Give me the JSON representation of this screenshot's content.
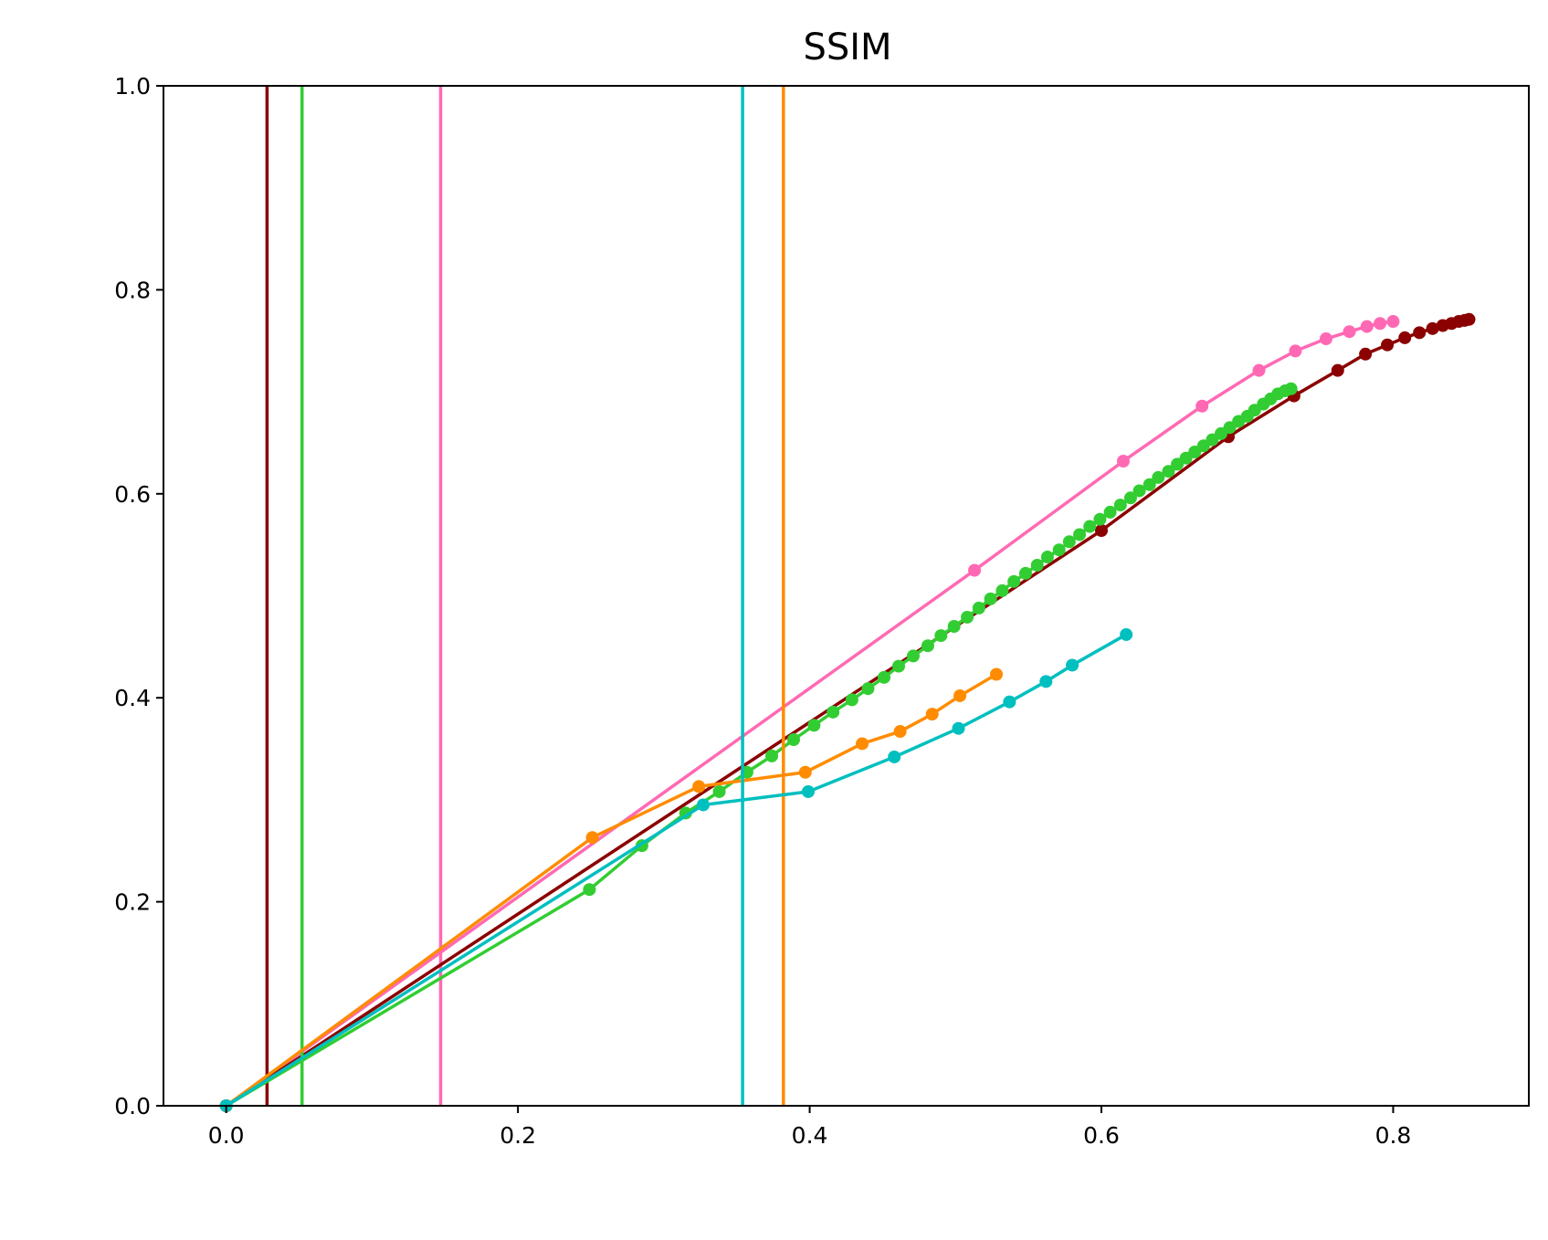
{
  "chart_data": {
    "type": "line",
    "title": "SSIM",
    "xlabel": "",
    "ylabel": "",
    "xlim": [
      -0.043,
      0.893
    ],
    "ylim": [
      0.0,
      1.0
    ],
    "xticks": [
      0.0,
      0.2,
      0.4,
      0.6,
      0.8
    ],
    "xtick_labels": [
      "0.0",
      "0.2",
      "0.4",
      "0.6",
      "0.8"
    ],
    "yticks": [
      0.0,
      0.2,
      0.4,
      0.6,
      0.8,
      1.0
    ],
    "ytick_labels": [
      "0.0",
      "0.2",
      "0.4",
      "0.6",
      "0.8",
      "1.0"
    ],
    "grid": false,
    "series": [
      {
        "color": "#ff69b4",
        "vline": 0.147,
        "points": [
          [
            0.0,
            0.0
          ],
          [
            0.513,
            0.525
          ],
          [
            0.615,
            0.632
          ],
          [
            0.669,
            0.686
          ],
          [
            0.708,
            0.721
          ],
          [
            0.733,
            0.74
          ],
          [
            0.754,
            0.752
          ],
          [
            0.77,
            0.759
          ],
          [
            0.782,
            0.764
          ],
          [
            0.791,
            0.767
          ],
          [
            0.8,
            0.769
          ]
        ]
      },
      {
        "color": "#8b0000",
        "vline": 0.028,
        "points": [
          [
            0.0,
            0.0
          ],
          [
            0.6,
            0.564
          ],
          [
            0.687,
            0.656
          ],
          [
            0.732,
            0.696
          ],
          [
            0.762,
            0.721
          ],
          [
            0.781,
            0.737
          ],
          [
            0.796,
            0.746
          ],
          [
            0.808,
            0.753
          ],
          [
            0.818,
            0.758
          ],
          [
            0.827,
            0.762
          ],
          [
            0.834,
            0.765
          ],
          [
            0.84,
            0.767
          ],
          [
            0.845,
            0.769
          ],
          [
            0.849,
            0.77
          ],
          [
            0.852,
            0.771
          ]
        ]
      },
      {
        "color": "#32cd32",
        "vline": 0.052,
        "points": [
          [
            0.0,
            0.0
          ],
          [
            0.249,
            0.212
          ],
          [
            0.285,
            0.255
          ],
          [
            0.315,
            0.287
          ],
          [
            0.338,
            0.308
          ],
          [
            0.357,
            0.327
          ],
          [
            0.374,
            0.343
          ],
          [
            0.389,
            0.359
          ],
          [
            0.403,
            0.373
          ],
          [
            0.416,
            0.386
          ],
          [
            0.429,
            0.398
          ],
          [
            0.44,
            0.409
          ],
          [
            0.451,
            0.42
          ],
          [
            0.461,
            0.431
          ],
          [
            0.471,
            0.441
          ],
          [
            0.481,
            0.451
          ],
          [
            0.49,
            0.461
          ],
          [
            0.499,
            0.47
          ],
          [
            0.508,
            0.479
          ],
          [
            0.516,
            0.488
          ],
          [
            0.524,
            0.497
          ],
          [
            0.532,
            0.505
          ],
          [
            0.54,
            0.514
          ],
          [
            0.548,
            0.522
          ],
          [
            0.556,
            0.53
          ],
          [
            0.563,
            0.538
          ],
          [
            0.571,
            0.545
          ],
          [
            0.578,
            0.553
          ],
          [
            0.585,
            0.56
          ],
          [
            0.592,
            0.568
          ],
          [
            0.599,
            0.575
          ],
          [
            0.606,
            0.582
          ],
          [
            0.613,
            0.589
          ],
          [
            0.62,
            0.596
          ],
          [
            0.626,
            0.603
          ],
          [
            0.633,
            0.609
          ],
          [
            0.639,
            0.616
          ],
          [
            0.646,
            0.622
          ],
          [
            0.652,
            0.629
          ],
          [
            0.658,
            0.635
          ],
          [
            0.664,
            0.641
          ],
          [
            0.67,
            0.647
          ],
          [
            0.676,
            0.653
          ],
          [
            0.682,
            0.659
          ],
          [
            0.688,
            0.665
          ],
          [
            0.694,
            0.671
          ],
          [
            0.7,
            0.676
          ],
          [
            0.705,
            0.682
          ],
          [
            0.711,
            0.688
          ],
          [
            0.716,
            0.693
          ],
          [
            0.721,
            0.698
          ],
          [
            0.726,
            0.701
          ],
          [
            0.73,
            0.703
          ]
        ]
      },
      {
        "color": "#ff8c00",
        "vline": 0.382,
        "points": [
          [
            0.0,
            0.0
          ],
          [
            0.251,
            0.263
          ],
          [
            0.324,
            0.313
          ],
          [
            0.397,
            0.327
          ],
          [
            0.436,
            0.355
          ],
          [
            0.462,
            0.367
          ],
          [
            0.484,
            0.384
          ],
          [
            0.503,
            0.402
          ],
          [
            0.528,
            0.423
          ]
        ]
      },
      {
        "color": "#00bfbf",
        "vline": 0.354,
        "points": [
          [
            0.0,
            0.0
          ],
          [
            0.327,
            0.295
          ],
          [
            0.399,
            0.308
          ],
          [
            0.458,
            0.342
          ],
          [
            0.502,
            0.37
          ],
          [
            0.537,
            0.396
          ],
          [
            0.562,
            0.416
          ],
          [
            0.58,
            0.432
          ],
          [
            0.617,
            0.462
          ]
        ]
      }
    ]
  }
}
